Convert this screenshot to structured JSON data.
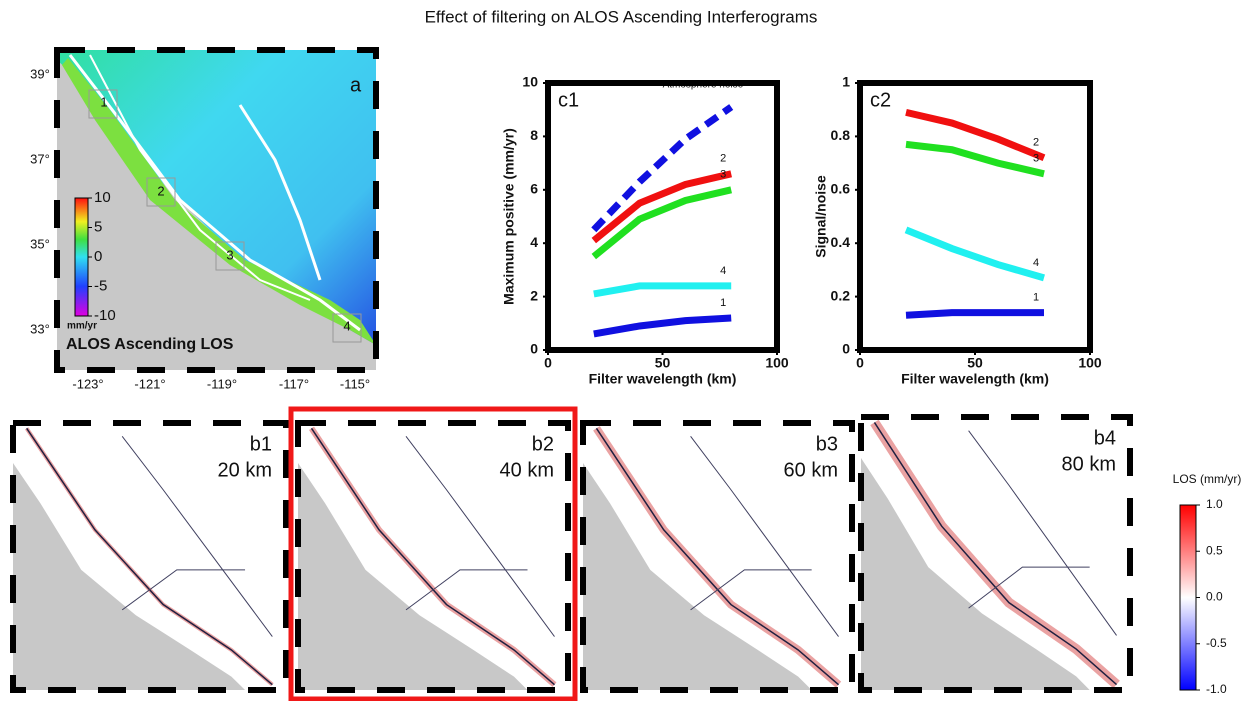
{
  "title": "Effect of filtering on ALOS Ascending Interferograms",
  "map_a": {
    "label": "a",
    "lat_labels": [
      "39°",
      "37°",
      "35°",
      "33°"
    ],
    "lon_labels": [
      "-123°",
      "-121°",
      "-119°",
      "-117°",
      "-115°"
    ],
    "box_labels": [
      "1",
      "2",
      "3",
      "4"
    ],
    "colorbar": {
      "ticks": [
        10,
        5,
        0,
        -5,
        -10
      ],
      "lim": [
        -10,
        10
      ],
      "unit": "mm/yr"
    },
    "caption": "ALOS Ascending LOS"
  },
  "chart_data": [
    {
      "type": "line",
      "label": "c1",
      "x_label": "Filter wavelength (km)",
      "y_label": "Maximum positive (mm/yr)",
      "x": [
        20,
        40,
        60,
        80
      ],
      "xlim": [
        0,
        100
      ],
      "xticks": [
        0,
        50,
        100
      ],
      "ylim": [
        0,
        10
      ],
      "yticks": [
        0,
        2,
        4,
        6,
        8,
        10
      ],
      "series": [
        {
          "name": "Atmosphere noise",
          "color": "#1010e0",
          "dashed": true,
          "values": [
            4.5,
            6.3,
            7.9,
            9.1
          ]
        },
        {
          "name": "2",
          "color": "#f01010",
          "values": [
            4.1,
            5.5,
            6.2,
            6.6
          ]
        },
        {
          "name": "3",
          "color": "#20e020",
          "values": [
            3.5,
            4.9,
            5.6,
            6.0
          ]
        },
        {
          "name": "4",
          "color": "#20f0f0",
          "values": [
            2.1,
            2.4,
            2.4,
            2.4
          ]
        },
        {
          "name": "1",
          "color": "#1010e0",
          "values": [
            0.6,
            0.9,
            1.1,
            1.2
          ]
        }
      ]
    },
    {
      "type": "line",
      "label": "c2",
      "x_label": "Filter wavelength (km)",
      "y_label": "Signal/noise",
      "x": [
        20,
        40,
        60,
        80
      ],
      "xlim": [
        0,
        100
      ],
      "xticks": [
        0,
        50,
        100
      ],
      "ylim": [
        0,
        1
      ],
      "yticks": [
        0,
        0.2,
        0.4,
        0.6,
        0.8,
        1
      ],
      "series": [
        {
          "name": "2",
          "color": "#f01010",
          "values": [
            0.89,
            0.85,
            0.79,
            0.72
          ]
        },
        {
          "name": "3",
          "color": "#20e020",
          "values": [
            0.77,
            0.75,
            0.7,
            0.66
          ]
        },
        {
          "name": "4",
          "color": "#20f0f0",
          "values": [
            0.45,
            0.38,
            0.32,
            0.27
          ]
        },
        {
          "name": "1",
          "color": "#1010e0",
          "values": [
            0.13,
            0.14,
            0.14,
            0.14
          ]
        }
      ]
    }
  ],
  "filtered_maps": [
    {
      "label": "b1",
      "wavelength": "20 km"
    },
    {
      "label": "b2",
      "wavelength": "40 km"
    },
    {
      "label": "b3",
      "wavelength": "60 km"
    },
    {
      "label": "b4",
      "wavelength": "80 km"
    }
  ],
  "los_colorbar": {
    "title": "LOS (mm/yr)",
    "lim": [
      -1,
      1
    ],
    "ticks": [
      {
        "value": 1,
        "label": "1.0"
      },
      {
        "value": 0.5,
        "label": "0.5"
      },
      {
        "value": 0,
        "label": "0.0"
      },
      {
        "value": -0.5,
        "label": "-0.5"
      },
      {
        "value": -1,
        "label": "-1.0"
      }
    ]
  }
}
